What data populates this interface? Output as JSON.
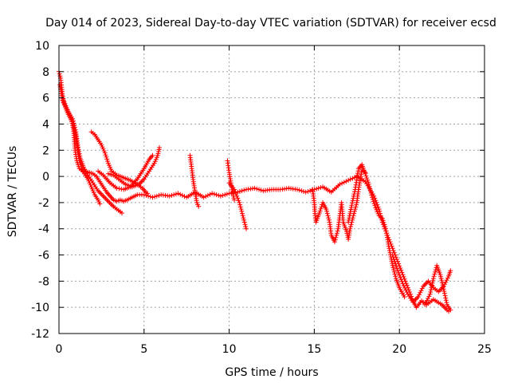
{
  "chart_data": {
    "type": "scatter",
    "title": "Day 014 of 2023, Sidereal Day-to-day VTEC variation (SDTVAR) for receiver ecsd",
    "xlabel": "GPS time / hours",
    "ylabel": "SDTVAR / TECUs",
    "xlim": [
      0,
      25
    ],
    "ylim": [
      -12,
      10
    ],
    "x_ticks": [
      0,
      5,
      10,
      15,
      20,
      25
    ],
    "y_ticks": [
      -12,
      -10,
      -8,
      -6,
      -4,
      -2,
      0,
      2,
      4,
      6,
      8,
      10
    ],
    "x_tick_labels": [
      "0",
      "5",
      "10",
      "15",
      "20",
      "25"
    ],
    "y_tick_labels": [
      "-12",
      "-10",
      "-8",
      "-6",
      "-4",
      "-2",
      "0",
      "2",
      "4",
      "6",
      "8",
      "10"
    ],
    "grid": true,
    "marker": "+",
    "series": [
      {
        "name": "SDTVAR",
        "color": "#ff0000",
        "tracks": [
          [
            [
              0.0,
              8.0
            ],
            [
              0.1,
              7.5
            ],
            [
              0.2,
              6.3
            ],
            [
              0.3,
              5.6
            ],
            [
              0.45,
              5.0
            ],
            [
              0.6,
              4.6
            ],
            [
              0.75,
              4.2
            ],
            [
              0.85,
              3.6
            ],
            [
              0.9,
              2.8
            ],
            [
              0.95,
              2.0
            ],
            [
              1.05,
              1.2
            ],
            [
              1.2,
              0.6
            ],
            [
              1.4,
              0.4
            ],
            [
              1.6,
              0.35
            ],
            [
              1.8,
              0.3
            ],
            [
              2.0,
              0.2
            ],
            [
              2.2,
              0.0
            ],
            [
              2.4,
              -0.4
            ],
            [
              2.6,
              -0.8
            ],
            [
              2.8,
              -1.2
            ],
            [
              3.0,
              -1.5
            ],
            [
              3.2,
              -1.8
            ],
            [
              3.4,
              -1.9
            ],
            [
              3.6,
              -1.8
            ],
            [
              3.8,
              -1.9
            ],
            [
              4.0,
              -1.8
            ],
            [
              4.3,
              -1.6
            ],
            [
              4.6,
              -1.4
            ],
            [
              5.0,
              -1.4
            ],
            [
              5.5,
              -1.6
            ],
            [
              6.0,
              -1.4
            ],
            [
              6.5,
              -1.5
            ],
            [
              7.0,
              -1.3
            ],
            [
              7.5,
              -1.6
            ],
            [
              8.0,
              -1.2
            ],
            [
              8.5,
              -1.6
            ],
            [
              9.0,
              -1.3
            ],
            [
              9.5,
              -1.5
            ],
            [
              10.0,
              -1.3
            ],
            [
              10.5,
              -1.2
            ],
            [
              11.0,
              -1.0
            ],
            [
              11.5,
              -0.9
            ],
            [
              12.0,
              -1.1
            ],
            [
              12.5,
              -1.0
            ],
            [
              13.0,
              -1.0
            ],
            [
              13.5,
              -0.9
            ],
            [
              14.0,
              -1.0
            ],
            [
              14.5,
              -1.2
            ],
            [
              15.0,
              -1.0
            ],
            [
              15.5,
              -0.8
            ],
            [
              16.0,
              -1.2
            ],
            [
              16.5,
              -0.6
            ],
            [
              17.0,
              -0.3
            ],
            [
              17.5,
              0.0
            ],
            [
              18.0,
              -0.4
            ],
            [
              18.5,
              -1.5
            ],
            [
              18.8,
              -2.5
            ],
            [
              19.0,
              -3.5
            ],
            [
              19.3,
              -4.5
            ],
            [
              19.6,
              -5.5
            ],
            [
              19.9,
              -6.5
            ],
            [
              20.2,
              -7.5
            ],
            [
              20.5,
              -8.5
            ],
            [
              20.8,
              -9.5
            ],
            [
              21.0,
              -10.0
            ],
            [
              21.3,
              -9.5
            ],
            [
              21.6,
              -9.8
            ],
            [
              22.0,
              -9.4
            ],
            [
              22.5,
              -9.8
            ],
            [
              22.8,
              -10.2
            ],
            [
              22.9,
              -10.3
            ]
          ],
          [
            [
              0.05,
              7.0
            ],
            [
              0.2,
              6.0
            ],
            [
              0.4,
              5.4
            ],
            [
              0.6,
              4.8
            ],
            [
              0.8,
              4.2
            ],
            [
              1.0,
              3.0
            ],
            [
              1.1,
              2.0
            ],
            [
              1.2,
              1.2
            ],
            [
              1.35,
              0.6
            ],
            [
              1.5,
              0.2
            ],
            [
              1.7,
              -0.2
            ],
            [
              1.9,
              -0.8
            ],
            [
              2.1,
              -1.4
            ],
            [
              2.3,
              -1.8
            ],
            [
              2.4,
              -2.1
            ]
          ],
          [
            [
              0.2,
              5.8
            ],
            [
              0.5,
              5.0
            ],
            [
              0.8,
              4.4
            ],
            [
              1.0,
              3.4
            ],
            [
              1.1,
              2.4
            ],
            [
              1.25,
              1.4
            ],
            [
              1.45,
              0.7
            ],
            [
              1.7,
              0.1
            ],
            [
              2.0,
              -0.5
            ],
            [
              2.3,
              -1.1
            ],
            [
              2.6,
              -1.5
            ],
            [
              2.9,
              -1.9
            ],
            [
              3.2,
              -2.3
            ],
            [
              3.5,
              -2.6
            ],
            [
              3.7,
              -2.8
            ]
          ],
          [
            [
              1.9,
              3.4
            ],
            [
              2.1,
              3.2
            ],
            [
              2.3,
              2.8
            ],
            [
              2.5,
              2.4
            ],
            [
              2.7,
              1.8
            ],
            [
              2.9,
              1.0
            ],
            [
              3.1,
              0.4
            ],
            [
              3.4,
              0.1
            ],
            [
              3.8,
              -0.1
            ],
            [
              4.2,
              -0.3
            ],
            [
              4.6,
              -0.6
            ],
            [
              4.9,
              -0.9
            ],
            [
              5.1,
              -1.2
            ],
            [
              5.2,
              -1.3
            ]
          ],
          [
            [
              2.9,
              0.2
            ],
            [
              3.2,
              0.1
            ],
            [
              3.5,
              -0.2
            ],
            [
              3.9,
              -0.6
            ],
            [
              4.3,
              -0.8
            ],
            [
              4.7,
              -0.6
            ],
            [
              5.0,
              -0.2
            ],
            [
              5.3,
              0.4
            ],
            [
              5.6,
              1.0
            ],
            [
              5.8,
              1.6
            ],
            [
              5.9,
              2.2
            ]
          ],
          [
            [
              2.3,
              0.4
            ],
            [
              2.6,
              0.1
            ],
            [
              3.0,
              -0.5
            ],
            [
              3.4,
              -0.9
            ],
            [
              3.8,
              -1.0
            ],
            [
              4.2,
              -0.8
            ],
            [
              4.6,
              -0.2
            ],
            [
              5.0,
              0.6
            ],
            [
              5.3,
              1.3
            ],
            [
              5.5,
              1.6
            ]
          ],
          [
            [
              7.7,
              1.6
            ],
            [
              7.8,
              0.6
            ],
            [
              7.9,
              -0.4
            ],
            [
              8.0,
              -1.2
            ],
            [
              8.1,
              -2.0
            ],
            [
              8.2,
              -2.3
            ]
          ],
          [
            [
              9.9,
              1.2
            ],
            [
              10.0,
              0.3
            ],
            [
              10.1,
              -0.5
            ],
            [
              10.2,
              -1.2
            ],
            [
              10.3,
              -1.8
            ]
          ],
          [
            [
              10.0,
              -0.5
            ],
            [
              10.3,
              -1.0
            ],
            [
              10.6,
              -2.0
            ],
            [
              10.8,
              -3.0
            ],
            [
              11.0,
              -4.0
            ]
          ],
          [
            [
              14.9,
              -1.0
            ],
            [
              15.0,
              -2.0
            ],
            [
              15.05,
              -3.0
            ],
            [
              15.1,
              -3.5
            ],
            [
              15.3,
              -2.8
            ],
            [
              15.5,
              -2.0
            ],
            [
              15.7,
              -2.5
            ],
            [
              15.9,
              -3.5
            ],
            [
              16.0,
              -4.5
            ],
            [
              16.2,
              -5.0
            ],
            [
              16.4,
              -4.0
            ],
            [
              16.5,
              -3.0
            ],
            [
              16.6,
              -2.0
            ],
            [
              16.7,
              -3.5
            ],
            [
              16.9,
              -4.2
            ],
            [
              17.0,
              -4.8
            ],
            [
              17.1,
              -4.0
            ],
            [
              17.3,
              -3.0
            ],
            [
              17.5,
              -2.0
            ],
            [
              17.6,
              -1.0
            ],
            [
              17.8,
              0.5
            ],
            [
              18.0,
              0.3
            ]
          ],
          [
            [
              17.0,
              -3.5
            ],
            [
              17.2,
              -2.2
            ],
            [
              17.4,
              -1.0
            ],
            [
              17.6,
              0.6
            ],
            [
              17.8,
              0.9
            ],
            [
              18.0,
              0.2
            ],
            [
              18.2,
              -0.6
            ],
            [
              18.4,
              -1.6
            ],
            [
              18.6,
              -2.4
            ],
            [
              18.8,
              -3.0
            ],
            [
              19.0,
              -3.2
            ],
            [
              19.2,
              -4.0
            ],
            [
              19.4,
              -5.5
            ],
            [
              19.6,
              -6.8
            ],
            [
              19.8,
              -7.8
            ],
            [
              20.0,
              -8.5
            ],
            [
              20.3,
              -9.2
            ]
          ],
          [
            [
              19.6,
              -6.0
            ],
            [
              19.9,
              -7.2
            ],
            [
              20.2,
              -8.2
            ],
            [
              20.5,
              -9.0
            ],
            [
              20.8,
              -9.6
            ],
            [
              21.1,
              -9.2
            ],
            [
              21.4,
              -8.4
            ],
            [
              21.7,
              -8.0
            ],
            [
              22.0,
              -8.5
            ],
            [
              22.3,
              -8.8
            ],
            [
              22.6,
              -8.4
            ],
            [
              22.9,
              -7.6
            ],
            [
              23.0,
              -7.2
            ]
          ],
          [
            [
              21.5,
              -9.8
            ],
            [
              21.8,
              -9.0
            ],
            [
              22.0,
              -7.8
            ],
            [
              22.2,
              -6.8
            ],
            [
              22.4,
              -7.5
            ],
            [
              22.6,
              -8.6
            ],
            [
              22.8,
              -9.8
            ],
            [
              23.0,
              -10.2
            ]
          ]
        ]
      }
    ]
  }
}
